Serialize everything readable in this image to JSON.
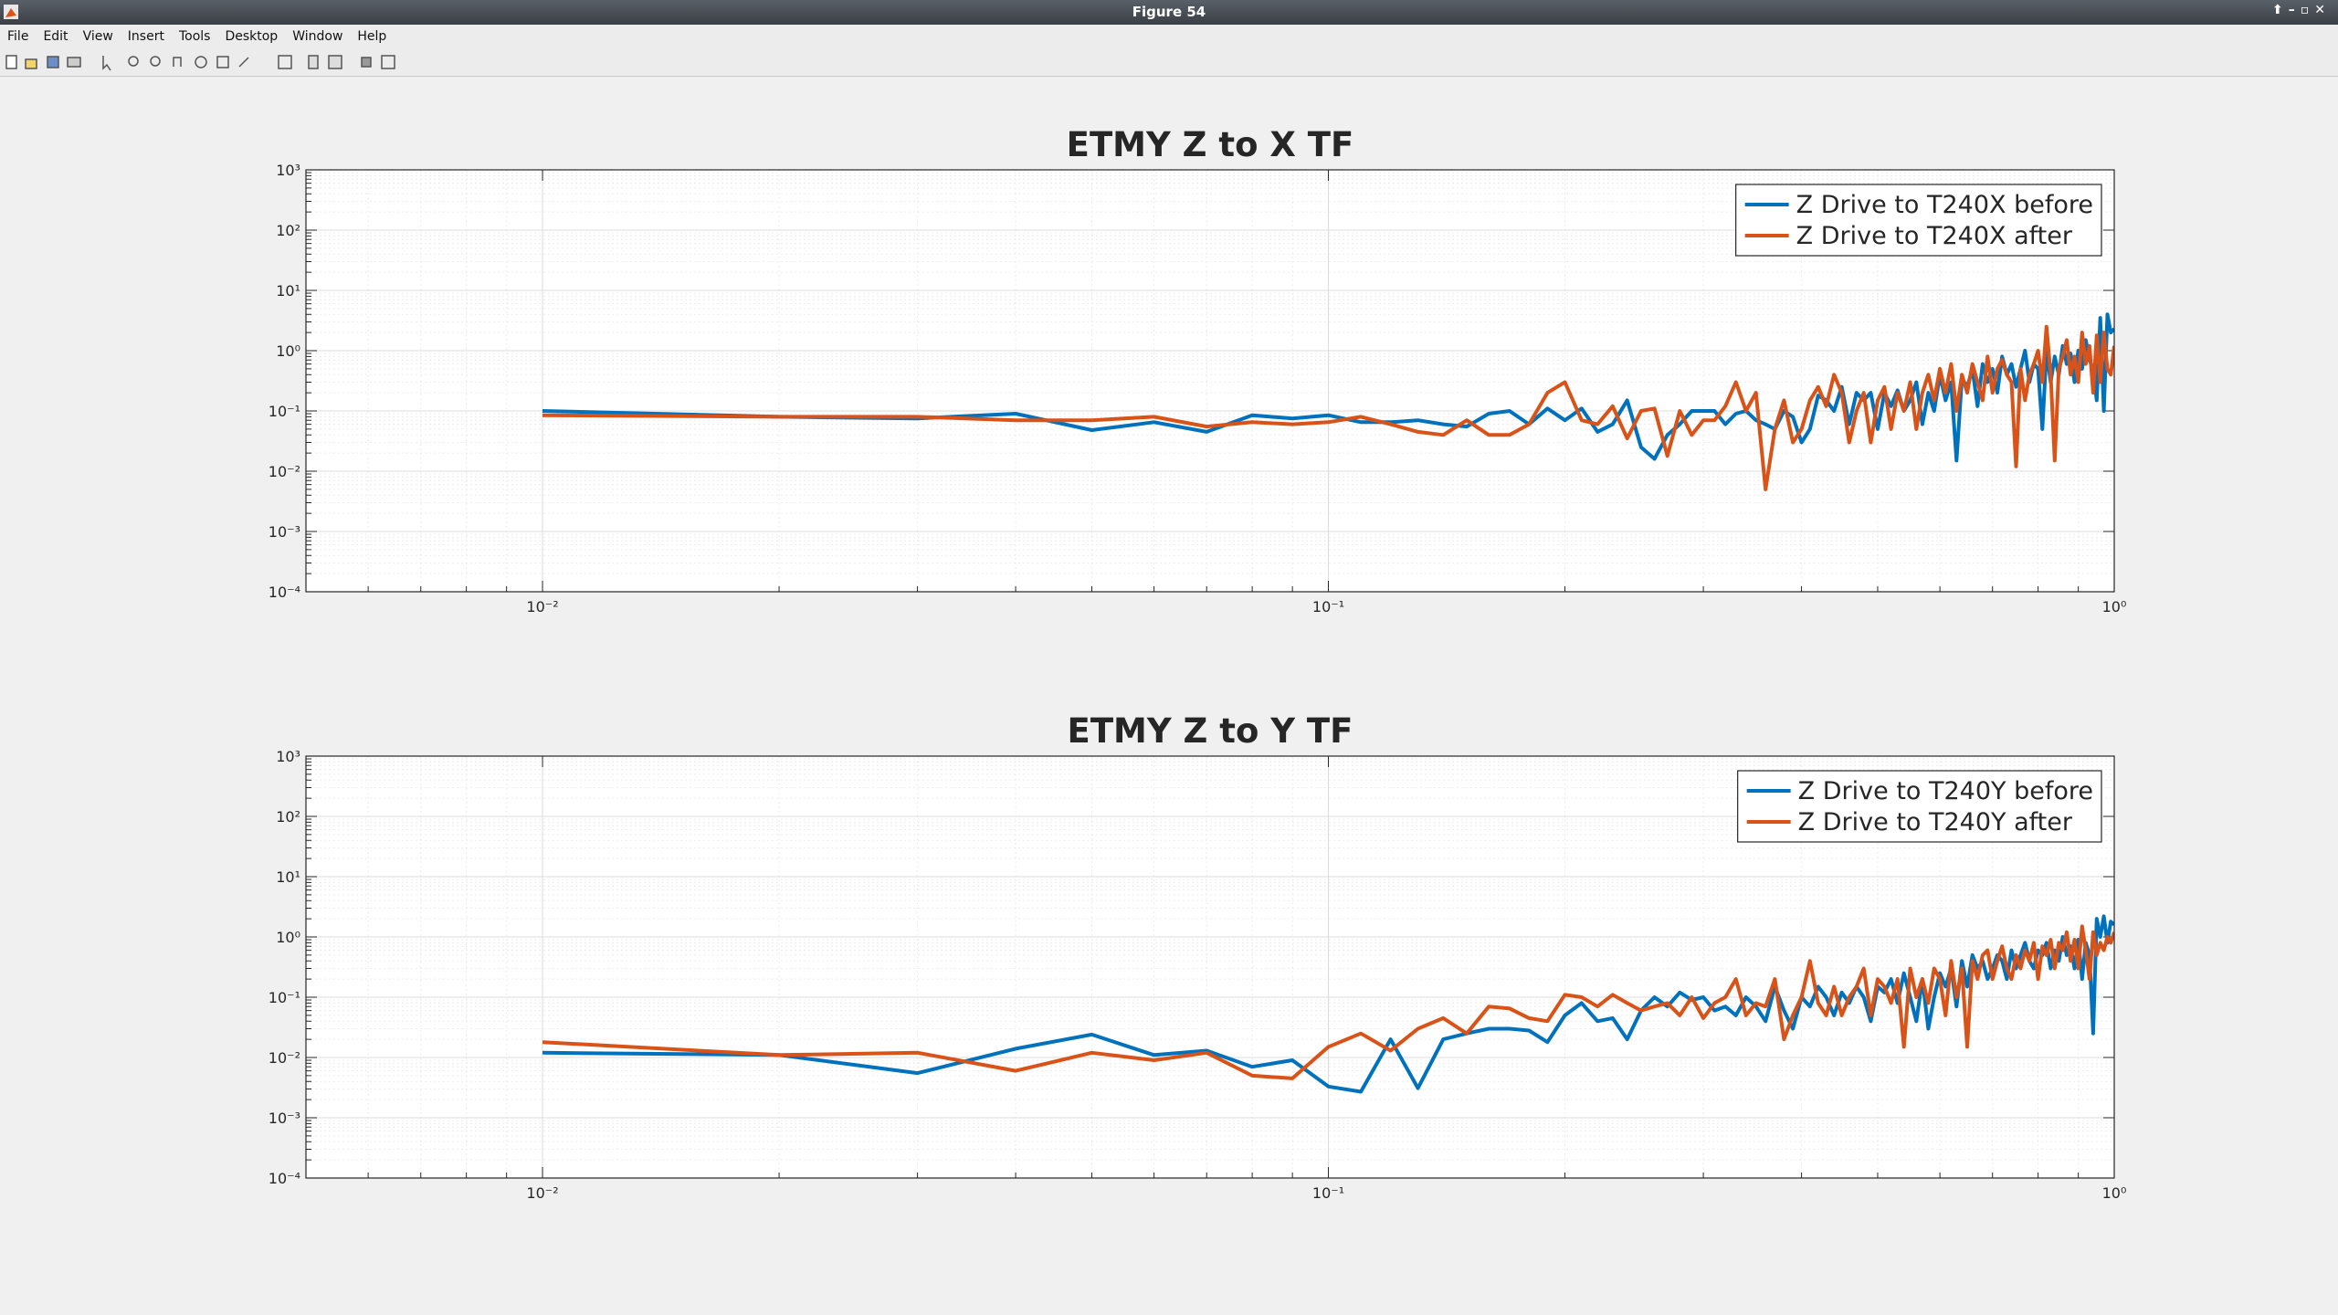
{
  "window": {
    "title": "Figure 54",
    "menu": [
      "File",
      "Edit",
      "View",
      "Insert",
      "Tools",
      "Desktop",
      "Window",
      "Help"
    ]
  },
  "chart_data": [
    {
      "type": "line",
      "title": "ETMY Z to X TF",
      "xscale": "log",
      "yscale": "log",
      "grid": true,
      "minor_grid": true,
      "legend": "northeast",
      "xlim": [
        0.005,
        1
      ],
      "ylim": [
        0.0001,
        1000
      ],
      "xticks": [
        {
          "value": 0.01,
          "label": "10⁻²"
        },
        {
          "value": 0.1,
          "label": "10⁻¹"
        },
        {
          "value": 1,
          "label": "10⁰"
        }
      ],
      "yticks": [
        {
          "value": 0.0001,
          "label": "10⁻⁴"
        },
        {
          "value": 0.001,
          "label": "10⁻³"
        },
        {
          "value": 0.01,
          "label": "10⁻²"
        },
        {
          "value": 0.1,
          "label": "10⁻¹"
        },
        {
          "value": 1,
          "label": "10⁰"
        },
        {
          "value": 10,
          "label": "10¹"
        },
        {
          "value": 100,
          "label": "10²"
        },
        {
          "value": 1000,
          "label": "10³"
        }
      ],
      "x": [
        0.01,
        0.02,
        0.03,
        0.04,
        0.05,
        0.06,
        0.07,
        0.08,
        0.09,
        0.1,
        0.11,
        0.12,
        0.13,
        0.14,
        0.15,
        0.16,
        0.17,
        0.18,
        0.19,
        0.2,
        0.21,
        0.22,
        0.23,
        0.24,
        0.25,
        0.26,
        0.27,
        0.28,
        0.29,
        0.3,
        0.31,
        0.32,
        0.33,
        0.34,
        0.35,
        0.36,
        0.37,
        0.38,
        0.39,
        0.4,
        0.41,
        0.42,
        0.43,
        0.44,
        0.45,
        0.46,
        0.47,
        0.48,
        0.49,
        0.5,
        0.51,
        0.52,
        0.53,
        0.54,
        0.55,
        0.56,
        0.57,
        0.58,
        0.59,
        0.6,
        0.61,
        0.62,
        0.63,
        0.64,
        0.65,
        0.66,
        0.67,
        0.68,
        0.69,
        0.7,
        0.71,
        0.72,
        0.73,
        0.74,
        0.75,
        0.76,
        0.77,
        0.78,
        0.79,
        0.8,
        0.81,
        0.82,
        0.83,
        0.84,
        0.85,
        0.86,
        0.87,
        0.88,
        0.89,
        0.9,
        0.91,
        0.92,
        0.93,
        0.94,
        0.95,
        0.96,
        0.97,
        0.98,
        0.99,
        1
      ],
      "series": [
        {
          "name": "Z Drive to T240X before",
          "color": "#0072BD",
          "values": [
            0.1,
            0.08,
            0.075,
            0.09,
            0.048,
            0.065,
            0.045,
            0.085,
            0.075,
            0.085,
            0.065,
            0.065,
            0.07,
            0.06,
            0.055,
            0.09,
            0.1,
            0.06,
            0.11,
            0.07,
            0.11,
            0.045,
            0.06,
            0.15,
            0.025,
            0.016,
            0.04,
            0.06,
            0.1,
            0.1,
            0.1,
            0.06,
            0.09,
            0.1,
            0.07,
            0.06,
            0.05,
            0.1,
            0.08,
            0.03,
            0.05,
            0.18,
            0.15,
            0.1,
            0.25,
            0.06,
            0.2,
            0.15,
            0.2,
            0.05,
            0.2,
            0.12,
            0.22,
            0.1,
            0.15,
            0.3,
            0.06,
            0.2,
            0.1,
            0.4,
            0.15,
            0.3,
            0.015,
            0.35,
            0.25,
            0.5,
            0.12,
            0.6,
            0.3,
            0.5,
            0.2,
            0.8,
            0.4,
            0.6,
            0.25,
            0.5,
            1,
            0.3,
            0.6,
            0.5,
            0.05,
            1,
            0.3,
            0.8,
            0.4,
            1.2,
            0.6,
            0.9,
            0.3,
            1,
            0.5,
            1.5,
            0.7,
            0.5,
            0.15,
            3.5,
            0.1,
            4,
            2,
            2.3
          ]
        },
        {
          "name": "Z Drive to T240X after",
          "color": "#D95319",
          "values": [
            0.085,
            0.08,
            0.08,
            0.07,
            0.07,
            0.08,
            0.055,
            0.065,
            0.06,
            0.065,
            0.08,
            0.06,
            0.045,
            0.04,
            0.07,
            0.04,
            0.04,
            0.06,
            0.2,
            0.3,
            0.07,
            0.06,
            0.12,
            0.035,
            0.1,
            0.11,
            0.018,
            0.1,
            0.04,
            0.07,
            0.07,
            0.12,
            0.3,
            0.1,
            0.2,
            0.005,
            0.05,
            0.15,
            0.03,
            0.05,
            0.15,
            0.25,
            0.12,
            0.4,
            0.2,
            0.03,
            0.1,
            0.2,
            0.03,
            0.15,
            0.25,
            0.05,
            0.2,
            0.1,
            0.3,
            0.05,
            0.2,
            0.4,
            0.15,
            0.5,
            0.2,
            0.6,
            0.1,
            0.4,
            0.2,
            0.6,
            0.3,
            0.15,
            0.8,
            0.2,
            0.5,
            0.7,
            0.4,
            0.3,
            0.012,
            0.5,
            0.15,
            0.4,
            0.6,
            1,
            0.3,
            2.5,
            0.4,
            0.015,
            0.5,
            0.8,
            1.5,
            0.4,
            0.8,
            0.3,
            2,
            0.6,
            1.2,
            0.2,
            1.8,
            0.3,
            2,
            0.5,
            0.4,
            1.2
          ]
        }
      ]
    },
    {
      "type": "line",
      "title": "ETMY Z to Y TF",
      "xscale": "log",
      "yscale": "log",
      "grid": true,
      "minor_grid": true,
      "legend": "northeast",
      "xlim": [
        0.005,
        1
      ],
      "ylim": [
        0.0001,
        1000
      ],
      "xticks": [
        {
          "value": 0.01,
          "label": "10⁻²"
        },
        {
          "value": 0.1,
          "label": "10⁻¹"
        },
        {
          "value": 1,
          "label": "10⁰"
        }
      ],
      "yticks": [
        {
          "value": 0.0001,
          "label": "10⁻⁴"
        },
        {
          "value": 0.001,
          "label": "10⁻³"
        },
        {
          "value": 0.01,
          "label": "10⁻²"
        },
        {
          "value": 0.1,
          "label": "10⁻¹"
        },
        {
          "value": 1,
          "label": "10⁰"
        },
        {
          "value": 10,
          "label": "10¹"
        },
        {
          "value": 100,
          "label": "10²"
        },
        {
          "value": 1000,
          "label": "10³"
        }
      ],
      "x": [
        0.01,
        0.02,
        0.03,
        0.04,
        0.05,
        0.06,
        0.07,
        0.08,
        0.09,
        0.1,
        0.11,
        0.12,
        0.13,
        0.14,
        0.15,
        0.16,
        0.17,
        0.18,
        0.19,
        0.2,
        0.21,
        0.22,
        0.23,
        0.24,
        0.25,
        0.26,
        0.27,
        0.28,
        0.29,
        0.3,
        0.31,
        0.32,
        0.33,
        0.34,
        0.35,
        0.36,
        0.37,
        0.38,
        0.39,
        0.4,
        0.41,
        0.42,
        0.43,
        0.44,
        0.45,
        0.46,
        0.47,
        0.48,
        0.49,
        0.5,
        0.51,
        0.52,
        0.53,
        0.54,
        0.55,
        0.56,
        0.57,
        0.58,
        0.59,
        0.6,
        0.61,
        0.62,
        0.63,
        0.64,
        0.65,
        0.66,
        0.67,
        0.68,
        0.69,
        0.7,
        0.71,
        0.72,
        0.73,
        0.74,
        0.75,
        0.76,
        0.77,
        0.78,
        0.79,
        0.8,
        0.81,
        0.82,
        0.83,
        0.84,
        0.85,
        0.86,
        0.87,
        0.88,
        0.89,
        0.9,
        0.91,
        0.92,
        0.93,
        0.94,
        0.95,
        0.96,
        0.97,
        0.98,
        0.99,
        1
      ],
      "series": [
        {
          "name": "Z Drive to T240Y before",
          "color": "#0072BD",
          "values": [
            0.012,
            0.011,
            0.0055,
            0.014,
            0.024,
            0.011,
            0.013,
            0.007,
            0.009,
            0.0033,
            0.0027,
            0.02,
            0.0031,
            0.02,
            0.025,
            0.03,
            0.03,
            0.028,
            0.018,
            0.05,
            0.08,
            0.04,
            0.045,
            0.02,
            0.06,
            0.1,
            0.07,
            0.12,
            0.09,
            0.1,
            0.06,
            0.07,
            0.05,
            0.1,
            0.07,
            0.04,
            0.15,
            0.06,
            0.03,
            0.1,
            0.07,
            0.15,
            0.1,
            0.05,
            0.12,
            0.08,
            0.15,
            0.1,
            0.04,
            0.15,
            0.12,
            0.2,
            0.08,
            0.25,
            0.1,
            0.04,
            0.2,
            0.03,
            0.1,
            0.25,
            0.15,
            0.3,
            0.07,
            0.4,
            0.15,
            0.5,
            0.3,
            0.4,
            0.2,
            0.3,
            0.5,
            0.4,
            0.2,
            0.6,
            0.3,
            0.5,
            0.8,
            0.4,
            0.3,
            0.6,
            0.5,
            0.8,
            0.3,
            0.6,
            0.4,
            1,
            0.5,
            0.7,
            0.3,
            0.9,
            0.2,
            0.8,
            0.5,
            0.025,
            2,
            1,
            2.2,
            0.8,
            1.8,
            1.6
          ]
        },
        {
          "name": "Z Drive to T240Y after",
          "color": "#D95319",
          "values": [
            0.018,
            0.011,
            0.012,
            0.006,
            0.012,
            0.009,
            0.012,
            0.005,
            0.0045,
            0.015,
            0.025,
            0.013,
            0.03,
            0.045,
            0.025,
            0.07,
            0.065,
            0.045,
            0.04,
            0.11,
            0.1,
            0.07,
            0.11,
            0.08,
            0.06,
            0.07,
            0.08,
            0.05,
            0.1,
            0.045,
            0.08,
            0.1,
            0.2,
            0.05,
            0.08,
            0.07,
            0.2,
            0.02,
            0.05,
            0.1,
            0.4,
            0.08,
            0.05,
            0.15,
            0.05,
            0.1,
            0.15,
            0.3,
            0.05,
            0.2,
            0.15,
            0.08,
            0.2,
            0.015,
            0.3,
            0.1,
            0.2,
            0.08,
            0.3,
            0.2,
            0.05,
            0.4,
            0.1,
            0.3,
            0.015,
            0.4,
            0.2,
            0.5,
            0.6,
            0.2,
            0.4,
            0.7,
            0.3,
            0.2,
            0.5,
            0.3,
            0.6,
            0.4,
            0.8,
            0.2,
            0.7,
            0.5,
            0.9,
            0.3,
            0.8,
            0.6,
            1.2,
            0.4,
            0.9,
            0.3,
            1.5,
            0.6,
            0.2,
            1.2,
            0.5,
            0.8,
            0.6,
            1,
            0.8,
            1.2
          ]
        }
      ]
    }
  ]
}
